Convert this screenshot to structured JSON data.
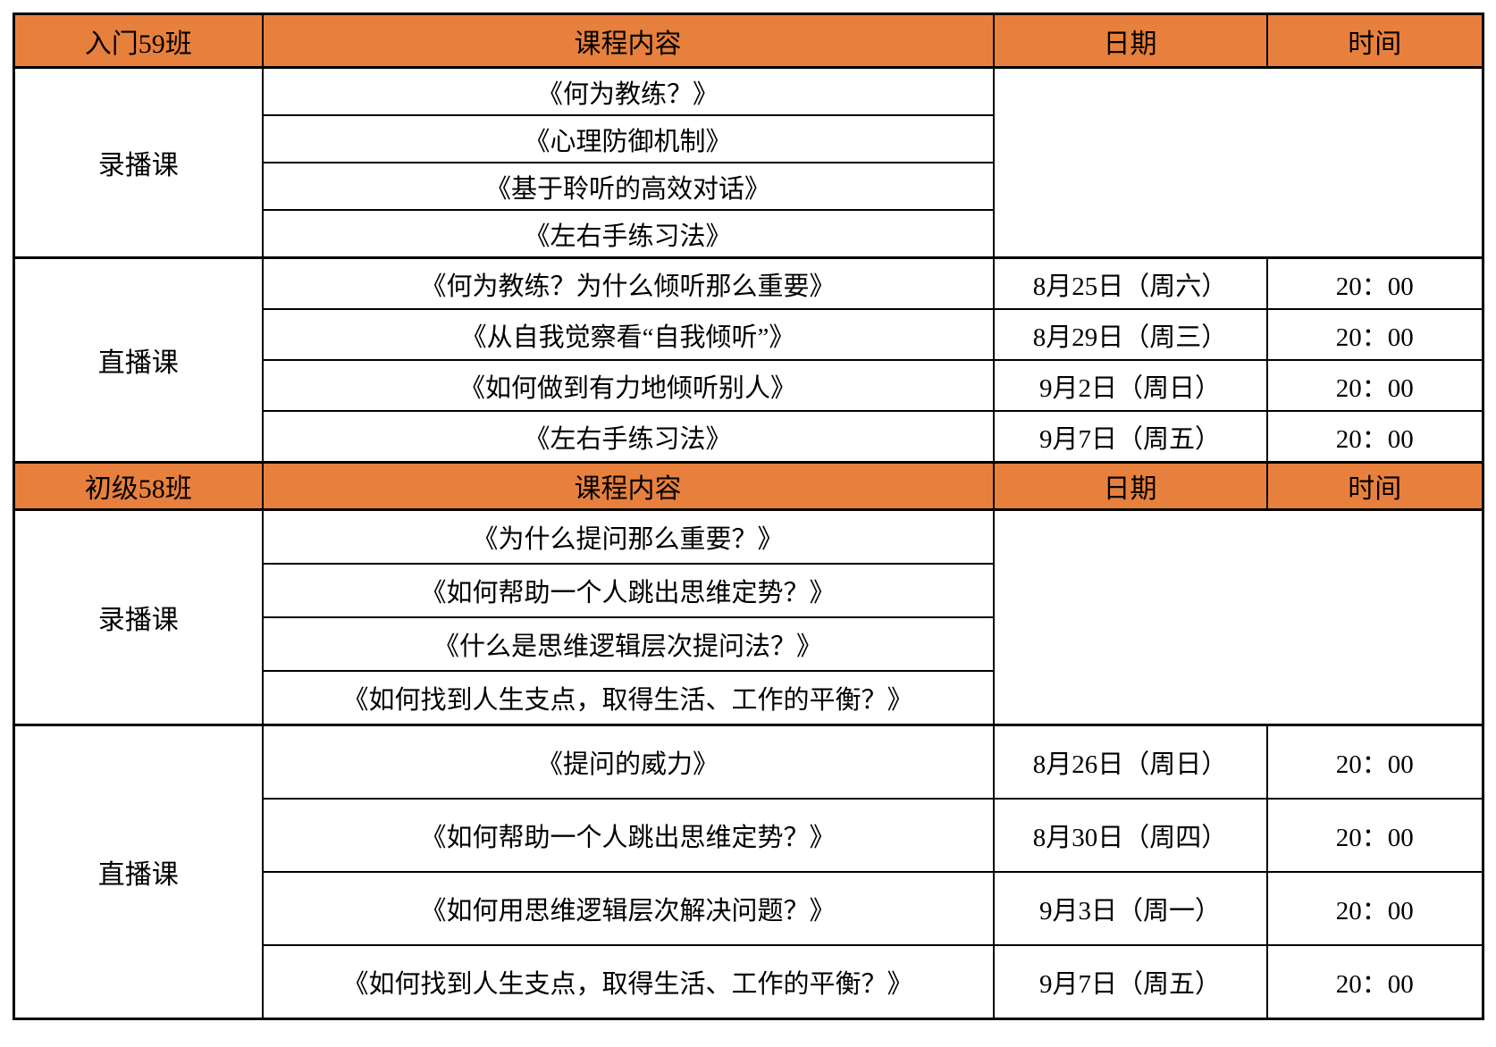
{
  "page": {
    "background_color": "#FFFFFF",
    "header_bg_color": "#E8803D",
    "border_color": "#000000"
  },
  "table": {
    "sections": [
      {
        "class_name": "入门59班",
        "columns": [
          "课程内容",
          "日期",
          "时间"
        ],
        "recorded_label": "录播课",
        "recorded_courses": [
          "《何为教练？》",
          "《心理防御机制》",
          "《基于聆听的高效对话》",
          "《左右手练习法》"
        ],
        "live_label": "直播课",
        "live_courses": [
          {
            "title": "《何为教练？为什么倾听那么重要》",
            "date": "8月25日（周六）",
            "time": "20：00"
          },
          {
            "title": "《从自我觉察看“自我倾听”》",
            "date": "8月29日（周三）",
            "time": "20：00"
          },
          {
            "title": "《如何做到有力地倾听别人》",
            "date": "9月2日（周日）",
            "time": "20：00"
          },
          {
            "title": "《左右手练习法》",
            "date": "9月7日（周五）",
            "time": "20：00"
          }
        ]
      },
      {
        "class_name": "初级58班",
        "columns": [
          "课程内容",
          "日期",
          "时间"
        ],
        "recorded_label": "录播课",
        "recorded_courses": [
          "《为什么提问那么重要？》",
          "《如何帮助一个人跳出思维定势？》",
          "《什么是思维逻辑层次提问法？》",
          "《如何找到人生支点，取得生活、工作的平衡？》"
        ],
        "live_label": "直播课",
        "live_courses": [
          {
            "title": "《提问的威力》",
            "date": "8月26日（周日）",
            "time": "20：00"
          },
          {
            "title": "《如何帮助一个人跳出思维定势？》",
            "date": "8月30日（周四）",
            "time": "20：00"
          },
          {
            "title": "《如何用思维逻辑层次解决问题？》",
            "date": "9月3日（周一）",
            "time": "20：00"
          },
          {
            "title": "《如何找到人生支点，取得生活、工作的平衡？》",
            "date": "9月7日（周五）",
            "time": "20：00"
          }
        ]
      }
    ]
  }
}
